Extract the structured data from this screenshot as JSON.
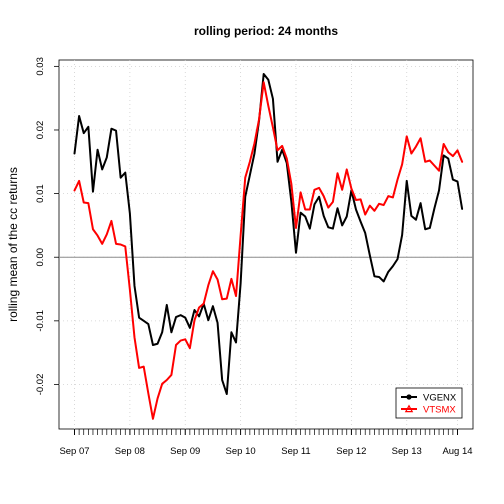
{
  "chart_data": {
    "type": "line",
    "title": "rolling period: 24 months",
    "xlabel": "",
    "ylabel": "rolling mean of the cc returns",
    "ylim": [
      -0.027,
      0.031
    ],
    "xlim": [
      1,
      84
    ],
    "grid": true,
    "legend_position": "bottom-right",
    "y_ticks": [
      {
        "value": -0.02,
        "label": "-0.02"
      },
      {
        "value": -0.01,
        "label": "-0.01"
      },
      {
        "value": 0.0,
        "label": "0.00"
      },
      {
        "value": 0.01,
        "label": "0.01"
      },
      {
        "value": 0.02,
        "label": "0.02"
      },
      {
        "value": 0.03,
        "label": "0.03"
      }
    ],
    "x_ticks": [
      {
        "index": 1,
        "label": "Sep 07"
      },
      {
        "index": 13,
        "label": "Sep 08"
      },
      {
        "index": 25,
        "label": "Sep 09"
      },
      {
        "index": 37,
        "label": "Sep 10"
      },
      {
        "index": 49,
        "label": "Sep 11"
      },
      {
        "index": 61,
        "label": "Sep 12"
      },
      {
        "index": 73,
        "label": "Sep 13"
      },
      {
        "index": 84,
        "label": "Aug 14"
      }
    ],
    "reference_line": 0.0,
    "series": [
      {
        "name": "VGENX",
        "color": "#000000",
        "values": [
          0.0163,
          0.0222,
          0.0195,
          0.0205,
          0.0103,
          0.0169,
          0.0138,
          0.0157,
          0.0202,
          0.0199,
          0.0125,
          0.0133,
          0.0069,
          -0.0045,
          -0.0095,
          -0.01,
          -0.0105,
          -0.0138,
          -0.0136,
          -0.0118,
          -0.0075,
          -0.0118,
          -0.0094,
          -0.0091,
          -0.0095,
          -0.0111,
          -0.0083,
          -0.0093,
          -0.0073,
          -0.0099,
          -0.0077,
          -0.0103,
          -0.0193,
          -0.0215,
          -0.0118,
          -0.0134,
          -0.0041,
          0.0095,
          0.0129,
          0.0163,
          0.0215,
          0.0288,
          0.0279,
          0.0249,
          0.015,
          0.0169,
          0.0148,
          0.0087,
          0.0007,
          0.007,
          0.0064,
          0.0045,
          0.0083,
          0.0095,
          0.0065,
          0.0047,
          0.0045,
          0.0077,
          0.005,
          0.0064,
          0.0105,
          0.0075,
          0.0056,
          0.0038,
          0.0003,
          -0.003,
          -0.0031,
          -0.0038,
          -0.0023,
          -0.0014,
          -0.0003,
          0.0035,
          0.012,
          0.0065,
          0.0059,
          0.0085,
          0.0044,
          0.0046,
          0.0077,
          0.0105,
          0.016,
          0.0155,
          0.0122,
          0.0119,
          0.0076
        ]
      },
      {
        "name": "VTSMX",
        "color": "#ff0000",
        "values": [
          0.0105,
          0.012,
          0.0086,
          0.0085,
          0.0044,
          0.0034,
          0.0021,
          0.0036,
          0.0057,
          0.0021,
          0.002,
          0.0017,
          -0.0051,
          -0.0126,
          -0.0174,
          -0.0172,
          -0.0214,
          -0.0254,
          -0.0222,
          -0.0199,
          -0.0193,
          -0.0185,
          -0.0138,
          -0.0131,
          -0.0129,
          -0.0143,
          -0.0099,
          -0.0079,
          -0.0073,
          -0.0044,
          -0.0022,
          -0.0035,
          -0.0066,
          -0.0065,
          -0.0034,
          -0.0061,
          0.0034,
          0.0125,
          0.015,
          0.0179,
          0.0217,
          0.0275,
          0.0238,
          0.0204,
          0.0168,
          0.0175,
          0.0155,
          0.0115,
          0.0046,
          0.0102,
          0.0075,
          0.0075,
          0.0106,
          0.0109,
          0.0096,
          0.0078,
          0.0087,
          0.0132,
          0.0106,
          0.0138,
          0.0108,
          0.009,
          0.0091,
          0.0067,
          0.0081,
          0.0073,
          0.0084,
          0.0082,
          0.0096,
          0.0094,
          0.0122,
          0.0146,
          0.019,
          0.0163,
          0.0174,
          0.0187,
          0.015,
          0.0152,
          0.0144,
          0.0136,
          0.0178,
          0.0165,
          0.0159,
          0.0168,
          0.015
        ]
      }
    ]
  }
}
